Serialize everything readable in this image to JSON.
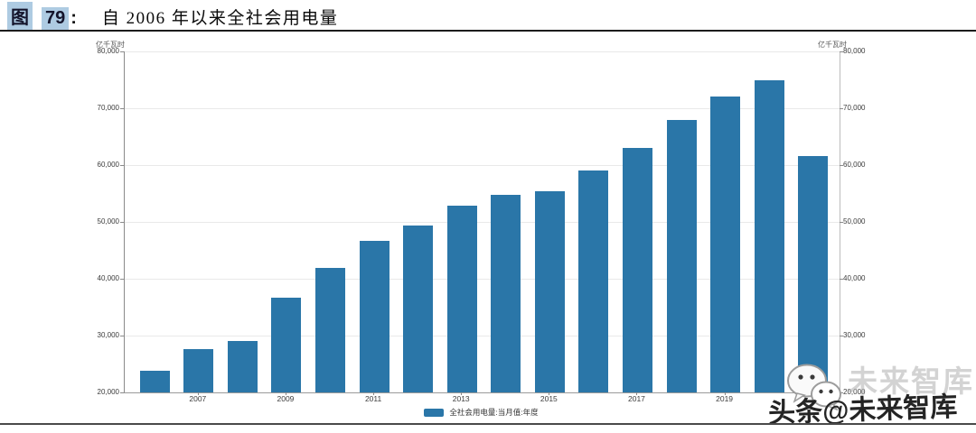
{
  "caption": {
    "fig_label": "图",
    "fig_number": "79",
    "colon": ":",
    "title": "自 2006 年以来全社会用电量"
  },
  "chart_data": {
    "type": "bar",
    "title": "自 2006 年以来全社会用电量",
    "unit_label_left": "亿千瓦时",
    "unit_label_right": "亿千瓦时",
    "categories": [
      "2006",
      "2007",
      "2008",
      "2009",
      "2010",
      "2011",
      "2012",
      "2013",
      "2014",
      "2015",
      "2016",
      "2017",
      "2018",
      "2019",
      "2020",
      "2021"
    ],
    "values": [
      23800,
      27700,
      29000,
      36600,
      41900,
      46600,
      49300,
      52900,
      54700,
      55400,
      59000,
      63000,
      68000,
      72000,
      74900,
      61600
    ],
    "shown_x_labels": [
      "2007",
      "2009",
      "2011",
      "2013",
      "2015",
      "2017",
      "2019"
    ],
    "ylim": [
      20000,
      80000
    ],
    "y_ticks": [
      20000,
      30000,
      40000,
      50000,
      60000,
      70000,
      80000
    ],
    "grid": true,
    "legend_position": "bottom-center",
    "legend": [
      {
        "label": "全社会用电量:当月值:年度",
        "color": "#2a76a8"
      }
    ],
    "bar_color": "#2a76a8"
  },
  "watermark": {
    "ghost_text": "未来智库",
    "text": "头条@未来智库",
    "icon": "wechat-icon"
  },
  "colors": {
    "bar": "#2a76a8",
    "caption_highlight": "#aecbe2",
    "gridline": "#e9e9e9",
    "rule": "#1c1c1c"
  }
}
